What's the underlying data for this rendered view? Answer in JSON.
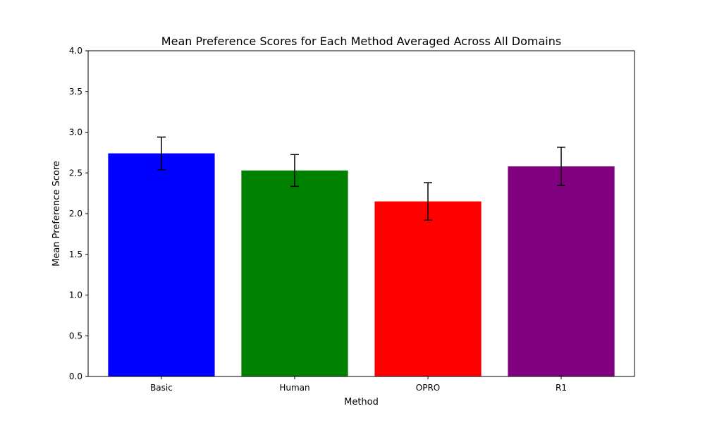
{
  "chart_data": {
    "type": "bar",
    "title": "Mean Preference Scores for Each Method Averaged Across All Domains",
    "xlabel": "Method",
    "ylabel": "Mean Preference Score",
    "ylim": [
      0,
      4
    ],
    "yticks": [
      "0.0",
      "0.5",
      "1.0",
      "1.5",
      "2.0",
      "2.5",
      "3.0",
      "3.5",
      "4.0"
    ],
    "categories": [
      "Basic",
      "Human",
      "OPRO",
      "R1"
    ],
    "values": [
      2.74,
      2.53,
      2.15,
      2.58
    ],
    "errors": [
      0.2,
      0.195,
      0.23,
      0.235
    ],
    "colors": [
      "#0000ff",
      "#008000",
      "#ff0000",
      "#800080"
    ],
    "grid": false
  }
}
